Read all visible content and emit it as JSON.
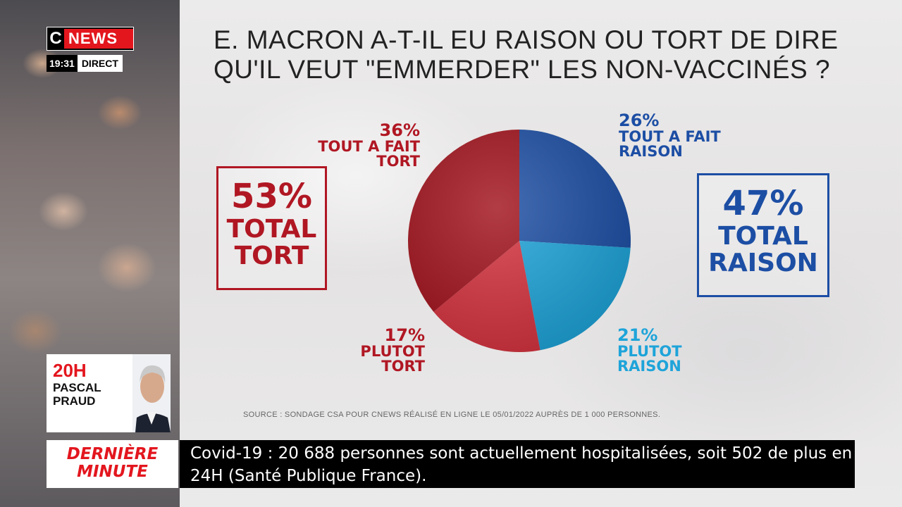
{
  "channel": {
    "logo_c": "C",
    "logo_news": "NEWS",
    "time": "19:31",
    "live": "DIRECT"
  },
  "title_line1": "E. MACRON A-T-IL EU RAISON OU TORT DE DIRE",
  "title_line2": "QU'IL VEUT \"EMMERDER\" LES NON-VACCINÉS ?",
  "chart_data": {
    "type": "pie",
    "title": "E. MACRON A-T-IL EU RAISON OU TORT DE DIRE QU'IL VEUT \"EMMERDER\" LES NON-VACCINÉS ?",
    "slices": [
      {
        "label": "TOUT A FAIT RAISON",
        "value": 26,
        "pct_text": "26%",
        "color": "#1c4ea4"
      },
      {
        "label": "PLUTOT RAISON",
        "value": 21,
        "pct_text": "21%",
        "color": "#1ea4d9"
      },
      {
        "label": "PLUTOT TORT",
        "value": 17,
        "pct_text": "17%",
        "color": "#d6333f"
      },
      {
        "label": "TOUT A FAIT TORT",
        "value": 36,
        "pct_text": "36%",
        "color": "#a2121c"
      }
    ],
    "totals": {
      "tort": {
        "pct": "53%",
        "label": "TOTAL",
        "label2": "TORT"
      },
      "raison": {
        "pct": "47%",
        "label": "TOTAL",
        "label2": "RAISON"
      }
    },
    "source": "SOURCE : SONDAGE CSA POUR CNEWS RÉALISÉ EN LIGNE LE 05/01/2022 AUPRÈS DE 1 000 PERSONNES."
  },
  "labels": {
    "tafr_1": "TOUT A FAIT",
    "tafr_2": "RAISON",
    "pr_1": "PLUTOT",
    "pr_2": "RAISON",
    "pt_1": "PLUTOT",
    "pt_2": "TORT",
    "taft_1": "TOUT A FAIT",
    "taft_2": "TORT"
  },
  "promo": {
    "time": "20H",
    "name_line1": "PASCAL",
    "name_line2": "PRAUD"
  },
  "breaking": {
    "line1": "DERNIÈRE",
    "line2": "MINUTE",
    "ticker_line1": "Covid-19 : 20 688 personnes sont actuellement hospitalisées, soit 502 de plus en",
    "ticker_line2": "24H (Santé Publique France)."
  }
}
